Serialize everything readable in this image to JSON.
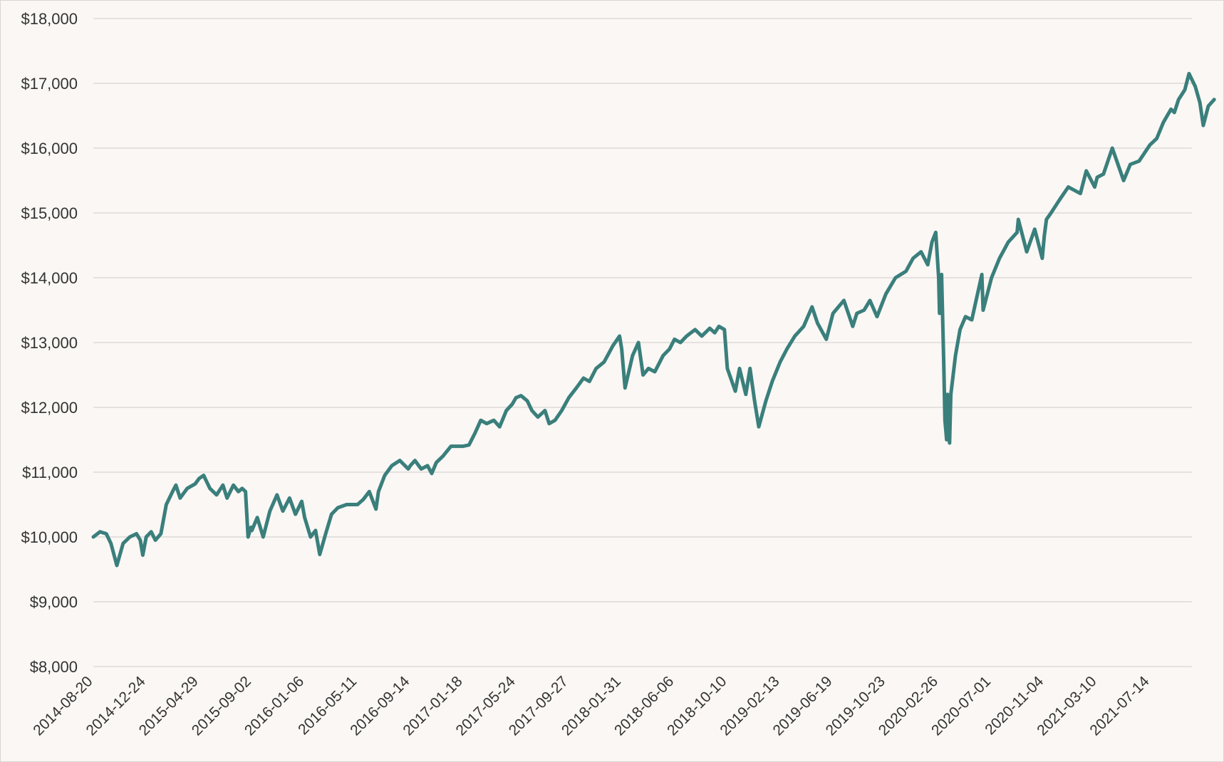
{
  "chart_data": {
    "type": "line",
    "title": "",
    "xlabel": "",
    "ylabel": "",
    "ylim": [
      8000,
      18000
    ],
    "y_ticks": [
      8000,
      9000,
      10000,
      11000,
      12000,
      13000,
      14000,
      15000,
      16000,
      17000,
      18000
    ],
    "y_tick_labels": [
      "$8,000",
      "$9,000",
      "$10,000",
      "$11,000",
      "$12,000",
      "$13,000",
      "$14,000",
      "$15,000",
      "$16,000",
      "$17,000",
      "$18,000"
    ],
    "x_range": [
      "2014-08-20",
      "2021-10-22"
    ],
    "x_tick_labels": [
      "2014-08-20",
      "2014-12-24",
      "2015-04-29",
      "2015-09-02",
      "2016-01-06",
      "2016-05-11",
      "2016-09-14",
      "2017-01-18",
      "2017-05-24",
      "2017-09-27",
      "2018-01-31",
      "2018-06-06",
      "2018-10-10",
      "2019-02-13",
      "2019-06-19",
      "2019-10-23",
      "2020-02-26",
      "2020-07-01",
      "2020-11-04",
      "2021-03-10",
      "2021-07-14"
    ],
    "grid": true,
    "legend": "none",
    "series": [
      {
        "color": "#3a7f7c",
        "points": [
          [
            "2014-08-20",
            10000
          ],
          [
            "2014-09-05",
            10080
          ],
          [
            "2014-09-20",
            10050
          ],
          [
            "2014-10-01",
            9900
          ],
          [
            "2014-10-15",
            9560
          ],
          [
            "2014-10-30",
            9900
          ],
          [
            "2014-11-15",
            10000
          ],
          [
            "2014-12-01",
            10050
          ],
          [
            "2014-12-10",
            9950
          ],
          [
            "2014-12-16",
            9720
          ],
          [
            "2014-12-24",
            10000
          ],
          [
            "2015-01-05",
            10080
          ],
          [
            "2015-01-15",
            9950
          ],
          [
            "2015-01-28",
            10050
          ],
          [
            "2015-02-10",
            10500
          ],
          [
            "2015-02-25",
            10700
          ],
          [
            "2015-03-05",
            10800
          ],
          [
            "2015-03-15",
            10600
          ],
          [
            "2015-04-01",
            10750
          ],
          [
            "2015-04-20",
            10820
          ],
          [
            "2015-04-29",
            10900
          ],
          [
            "2015-05-10",
            10950
          ],
          [
            "2015-05-25",
            10750
          ],
          [
            "2015-06-10",
            10650
          ],
          [
            "2015-06-25",
            10800
          ],
          [
            "2015-07-05",
            10600
          ],
          [
            "2015-07-20",
            10800
          ],
          [
            "2015-08-01",
            10700
          ],
          [
            "2015-08-10",
            10750
          ],
          [
            "2015-08-18",
            10700
          ],
          [
            "2015-08-24",
            10000
          ],
          [
            "2015-08-31",
            10150
          ],
          [
            "2015-09-02",
            10100
          ],
          [
            "2015-09-15",
            10300
          ],
          [
            "2015-09-29",
            10000
          ],
          [
            "2015-10-15",
            10400
          ],
          [
            "2015-11-01",
            10650
          ],
          [
            "2015-11-15",
            10400
          ],
          [
            "2015-12-01",
            10600
          ],
          [
            "2015-12-15",
            10350
          ],
          [
            "2015-12-30",
            10550
          ],
          [
            "2016-01-06",
            10300
          ],
          [
            "2016-01-20",
            10000
          ],
          [
            "2016-02-01",
            10100
          ],
          [
            "2016-02-11",
            9730
          ],
          [
            "2016-02-25",
            10050
          ],
          [
            "2016-03-10",
            10350
          ],
          [
            "2016-03-25",
            10450
          ],
          [
            "2016-04-15",
            10500
          ],
          [
            "2016-05-11",
            10500
          ],
          [
            "2016-05-25",
            10580
          ],
          [
            "2016-06-08",
            10700
          ],
          [
            "2016-06-24",
            10430
          ],
          [
            "2016-06-30",
            10700
          ],
          [
            "2016-07-15",
            10950
          ],
          [
            "2016-08-01",
            11100
          ],
          [
            "2016-08-20",
            11180
          ],
          [
            "2016-09-09",
            11050
          ],
          [
            "2016-09-14",
            11100
          ],
          [
            "2016-09-25",
            11180
          ],
          [
            "2016-10-10",
            11050
          ],
          [
            "2016-10-25",
            11100
          ],
          [
            "2016-11-04",
            10980
          ],
          [
            "2016-11-15",
            11150
          ],
          [
            "2016-12-01",
            11250
          ],
          [
            "2016-12-20",
            11400
          ],
          [
            "2017-01-18",
            11400
          ],
          [
            "2017-02-01",
            11420
          ],
          [
            "2017-02-15",
            11600
          ],
          [
            "2017-03-01",
            11800
          ],
          [
            "2017-03-15",
            11750
          ],
          [
            "2017-04-01",
            11800
          ],
          [
            "2017-04-15",
            11700
          ],
          [
            "2017-05-01",
            11950
          ],
          [
            "2017-05-15",
            12050
          ],
          [
            "2017-05-24",
            12150
          ],
          [
            "2017-06-05",
            12180
          ],
          [
            "2017-06-20",
            12100
          ],
          [
            "2017-07-01",
            11950
          ],
          [
            "2017-07-15",
            11850
          ],
          [
            "2017-08-01",
            11950
          ],
          [
            "2017-08-11",
            11750
          ],
          [
            "2017-08-25",
            11800
          ],
          [
            "2017-09-10",
            11950
          ],
          [
            "2017-09-27",
            12150
          ],
          [
            "2017-10-15",
            12300
          ],
          [
            "2017-11-01",
            12450
          ],
          [
            "2017-11-15",
            12400
          ],
          [
            "2017-12-01",
            12600
          ],
          [
            "2017-12-20",
            12700
          ],
          [
            "2018-01-10",
            12950
          ],
          [
            "2018-01-26",
            13100
          ],
          [
            "2018-01-31",
            12900
          ],
          [
            "2018-02-08",
            12300
          ],
          [
            "2018-02-26",
            12800
          ],
          [
            "2018-03-12",
            13000
          ],
          [
            "2018-03-23",
            12500
          ],
          [
            "2018-04-05",
            12600
          ],
          [
            "2018-04-20",
            12550
          ],
          [
            "2018-05-10",
            12800
          ],
          [
            "2018-05-25",
            12900
          ],
          [
            "2018-06-06",
            13050
          ],
          [
            "2018-06-20",
            13000
          ],
          [
            "2018-07-05",
            13100
          ],
          [
            "2018-07-25",
            13200
          ],
          [
            "2018-08-10",
            13100
          ],
          [
            "2018-08-29",
            13220
          ],
          [
            "2018-09-10",
            13150
          ],
          [
            "2018-09-20",
            13250
          ],
          [
            "2018-10-03",
            13200
          ],
          [
            "2018-10-10",
            12600
          ],
          [
            "2018-10-29",
            12250
          ],
          [
            "2018-11-08",
            12600
          ],
          [
            "2018-11-23",
            12200
          ],
          [
            "2018-12-03",
            12600
          ],
          [
            "2018-12-14",
            12100
          ],
          [
            "2018-12-24",
            11700
          ],
          [
            "2019-01-10",
            12100
          ],
          [
            "2019-01-25",
            12400
          ],
          [
            "2019-02-13",
            12700
          ],
          [
            "2019-03-01",
            12900
          ],
          [
            "2019-03-20",
            13100
          ],
          [
            "2019-04-10",
            13250
          ],
          [
            "2019-04-30",
            13550
          ],
          [
            "2019-05-13",
            13300
          ],
          [
            "2019-06-03",
            13050
          ],
          [
            "2019-06-19",
            13450
          ],
          [
            "2019-07-15",
            13650
          ],
          [
            "2019-08-05",
            13250
          ],
          [
            "2019-08-15",
            13450
          ],
          [
            "2019-09-01",
            13500
          ],
          [
            "2019-09-15",
            13650
          ],
          [
            "2019-10-02",
            13400
          ],
          [
            "2019-10-23",
            13750
          ],
          [
            "2019-11-15",
            14000
          ],
          [
            "2019-12-10",
            14100
          ],
          [
            "2019-12-27",
            14300
          ],
          [
            "2020-01-15",
            14400
          ],
          [
            "2020-01-31",
            14200
          ],
          [
            "2020-02-10",
            14550
          ],
          [
            "2020-02-19",
            14700
          ],
          [
            "2020-02-26",
            14000
          ],
          [
            "2020-02-28",
            13450
          ],
          [
            "2020-03-04",
            14050
          ],
          [
            "2020-03-09",
            12700
          ],
          [
            "2020-03-12",
            11800
          ],
          [
            "2020-03-16",
            11500
          ],
          [
            "2020-03-18",
            12200
          ],
          [
            "2020-03-23",
            11450
          ],
          [
            "2020-03-26",
            12200
          ],
          [
            "2020-04-06",
            12800
          ],
          [
            "2020-04-17",
            13200
          ],
          [
            "2020-04-30",
            13400
          ],
          [
            "2020-05-15",
            13350
          ],
          [
            "2020-06-08",
            14050
          ],
          [
            "2020-06-11",
            13500
          ],
          [
            "2020-07-01",
            14000
          ],
          [
            "2020-07-20",
            14300
          ],
          [
            "2020-08-10",
            14550
          ],
          [
            "2020-08-31",
            14700
          ],
          [
            "2020-09-03",
            14900
          ],
          [
            "2020-09-23",
            14400
          ],
          [
            "2020-10-12",
            14750
          ],
          [
            "2020-10-30",
            14300
          ],
          [
            "2020-11-04",
            14650
          ],
          [
            "2020-11-09",
            14900
          ],
          [
            "2020-11-20",
            15000
          ],
          [
            "2020-12-10",
            15200
          ],
          [
            "2020-12-31",
            15400
          ],
          [
            "2021-01-29",
            15300
          ],
          [
            "2021-02-12",
            15650
          ],
          [
            "2021-03-04",
            15400
          ],
          [
            "2021-03-10",
            15550
          ],
          [
            "2021-03-25",
            15600
          ],
          [
            "2021-04-15",
            16000
          ],
          [
            "2021-05-12",
            15500
          ],
          [
            "2021-05-28",
            15750
          ],
          [
            "2021-06-18",
            15800
          ],
          [
            "2021-07-14",
            16050
          ],
          [
            "2021-07-30",
            16150
          ],
          [
            "2021-08-15",
            16400
          ],
          [
            "2021-09-02",
            16600
          ],
          [
            "2021-09-10",
            16550
          ],
          [
            "2021-09-20",
            16750
          ],
          [
            "2021-10-05",
            16900
          ],
          [
            "2021-10-15",
            17150
          ],
          [
            "2021-10-30",
            16950
          ],
          [
            "2021-11-10",
            16700
          ],
          [
            "2021-11-18",
            16350
          ],
          [
            "2021-11-30",
            16650
          ],
          [
            "2021-12-14",
            16750
          ]
        ]
      }
    ]
  }
}
